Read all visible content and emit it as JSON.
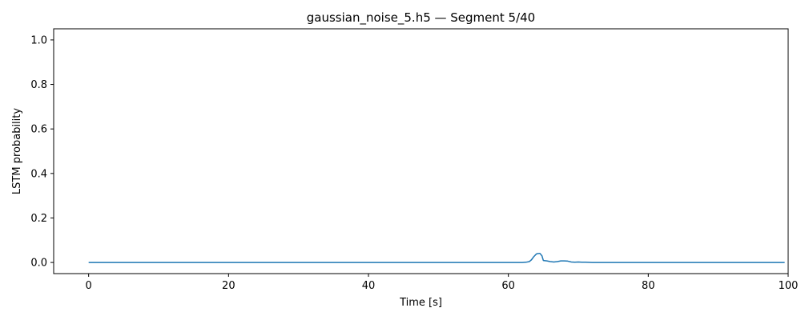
{
  "chart_data": {
    "type": "line",
    "title": "gaussian_noise_5.h5 — Segment 5/40",
    "xlabel": "Time [s]",
    "ylabel": "LSTM probability",
    "xlim": [
      -5,
      100
    ],
    "ylim": [
      -0.05,
      1.05
    ],
    "xticks": [
      0,
      20,
      40,
      60,
      80,
      100
    ],
    "yticks": [
      0.0,
      0.2,
      0.4,
      0.6,
      0.8,
      1.0
    ],
    "xtick_labels": [
      "0",
      "20",
      "40",
      "60",
      "80",
      "100"
    ],
    "ytick_labels": [
      "0.0",
      "0.2",
      "0.4",
      "0.6",
      "0.8",
      "1.0"
    ],
    "grid": false,
    "series": [
      {
        "color": "#1f77b4",
        "x": [
          0,
          10,
          20,
          30,
          40,
          50,
          60,
          62,
          62.5,
          63,
          63.3,
          63.6,
          64,
          64.2,
          64.5,
          64.8,
          65,
          65.5,
          66,
          66.5,
          67,
          67.5,
          68,
          68.5,
          69,
          69.5,
          70,
          70.5,
          71,
          72,
          75,
          80,
          90,
          99.5
        ],
        "y": [
          0,
          0,
          0,
          0,
          0,
          0,
          0,
          0,
          0.001,
          0.004,
          0.012,
          0.025,
          0.038,
          0.04,
          0.041,
          0.03,
          0.009,
          0.007,
          0.004,
          0.002,
          0.004,
          0.007,
          0.007,
          0.006,
          0.002,
          0.001,
          0.002,
          0.001,
          0.001,
          0.0,
          0,
          0,
          0,
          0
        ]
      }
    ]
  }
}
